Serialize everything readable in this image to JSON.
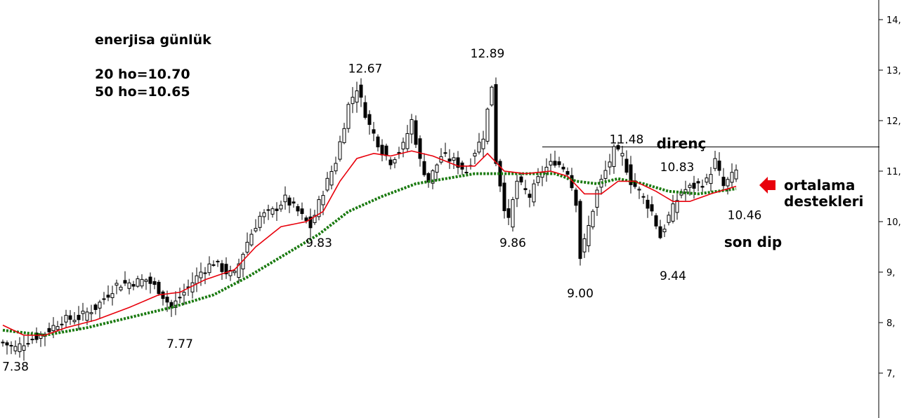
{
  "chart_data": {
    "type": "candlestick",
    "title": "enerjisa günlük",
    "ma_info": [
      "20 ho=10.70",
      "50 ho=10.65"
    ],
    "y_axis": {
      "position": "right",
      "ylim": [
        6.25,
        14.25
      ],
      "ticks": [
        {
          "value": 7,
          "label": "7,"
        },
        {
          "value": 8,
          "label": "8,"
        },
        {
          "value": 9,
          "label": "9,"
        },
        {
          "value": 10,
          "label": "10,"
        },
        {
          "value": 11,
          "label": "11,"
        },
        {
          "value": 12,
          "label": "12,"
        },
        {
          "value": 13,
          "label": "13,"
        },
        {
          "value": 14,
          "label": "14,"
        }
      ]
    },
    "candle_count": 175,
    "anchors": [
      {
        "i": 0,
        "c": 7.6
      },
      {
        "i": 3,
        "c": 7.5
      },
      {
        "i": 6,
        "c": 7.65
      },
      {
        "i": 10,
        "c": 7.8
      },
      {
        "i": 14,
        "c": 8.05
      },
      {
        "i": 18,
        "c": 8.1
      },
      {
        "i": 22,
        "c": 8.3
      },
      {
        "i": 27,
        "c": 8.75
      },
      {
        "i": 31,
        "c": 8.8
      },
      {
        "i": 34,
        "c": 8.85
      },
      {
        "i": 37,
        "c": 8.65
      },
      {
        "i": 40,
        "c": 8.3
      },
      {
        "i": 43,
        "c": 8.6
      },
      {
        "i": 47,
        "c": 9.0
      },
      {
        "i": 50,
        "c": 9.2
      },
      {
        "i": 53,
        "c": 9.0
      },
      {
        "i": 55,
        "c": 8.95
      },
      {
        "i": 58,
        "c": 9.6
      },
      {
        "i": 61,
        "c": 10.1
      },
      {
        "i": 64,
        "c": 10.2
      },
      {
        "i": 67,
        "c": 10.45
      },
      {
        "i": 70,
        "c": 10.2
      },
      {
        "i": 73,
        "c": 9.9
      },
      {
        "i": 76,
        "c": 10.6
      },
      {
        "i": 79,
        "c": 11.2
      },
      {
        "i": 82,
        "c": 12.3
      },
      {
        "i": 84,
        "c": 12.65
      },
      {
        "i": 87,
        "c": 11.9
      },
      {
        "i": 90,
        "c": 11.4
      },
      {
        "i": 92,
        "c": 11.2
      },
      {
        "i": 95,
        "c": 11.5
      },
      {
        "i": 97,
        "c": 12.0
      },
      {
        "i": 99,
        "c": 11.2
      },
      {
        "i": 101,
        "c": 10.8
      },
      {
        "i": 104,
        "c": 11.3
      },
      {
        "i": 107,
        "c": 11.2
      },
      {
        "i": 110,
        "c": 11.0
      },
      {
        "i": 112,
        "c": 11.4
      },
      {
        "i": 114,
        "c": 11.7
      },
      {
        "i": 116,
        "c": 12.7
      },
      {
        "i": 117,
        "c": 11.2
      },
      {
        "i": 119,
        "c": 10.3
      },
      {
        "i": 120,
        "c": 10.0
      },
      {
        "i": 122,
        "c": 10.8
      },
      {
        "i": 125,
        "c": 10.5
      },
      {
        "i": 128,
        "c": 11.0
      },
      {
        "i": 131,
        "c": 11.2
      },
      {
        "i": 134,
        "c": 11.0
      },
      {
        "i": 136,
        "c": 10.4
      },
      {
        "i": 137,
        "c": 9.3
      },
      {
        "i": 139,
        "c": 9.9
      },
      {
        "i": 141,
        "c": 10.6
      },
      {
        "i": 143,
        "c": 11.0
      },
      {
        "i": 145,
        "c": 11.4
      },
      {
        "i": 147,
        "c": 11.3
      },
      {
        "i": 149,
        "c": 10.8
      },
      {
        "i": 151,
        "c": 10.6
      },
      {
        "i": 154,
        "c": 10.2
      },
      {
        "i": 156,
        "c": 9.7
      },
      {
        "i": 158,
        "c": 10.1
      },
      {
        "i": 161,
        "c": 10.6
      },
      {
        "i": 164,
        "c": 10.7
      },
      {
        "i": 167,
        "c": 10.8
      },
      {
        "i": 169,
        "c": 11.2
      },
      {
        "i": 171,
        "c": 10.7
      },
      {
        "i": 174,
        "c": 11.0
      }
    ],
    "ma20": [
      {
        "i": 0,
        "v": 7.95
      },
      {
        "i": 5,
        "v": 7.75
      },
      {
        "i": 10,
        "v": 7.75
      },
      {
        "i": 15,
        "v": 7.9
      },
      {
        "i": 22,
        "v": 8.05
      },
      {
        "i": 30,
        "v": 8.3
      },
      {
        "i": 37,
        "v": 8.55
      },
      {
        "i": 42,
        "v": 8.6
      },
      {
        "i": 48,
        "v": 8.85
      },
      {
        "i": 55,
        "v": 9.05
      },
      {
        "i": 60,
        "v": 9.5
      },
      {
        "i": 66,
        "v": 9.9
      },
      {
        "i": 72,
        "v": 10.0
      },
      {
        "i": 76,
        "v": 10.2
      },
      {
        "i": 80,
        "v": 10.8
      },
      {
        "i": 84,
        "v": 11.25
      },
      {
        "i": 88,
        "v": 11.35
      },
      {
        "i": 92,
        "v": 11.3
      },
      {
        "i": 97,
        "v": 11.4
      },
      {
        "i": 102,
        "v": 11.3
      },
      {
        "i": 108,
        "v": 11.1
      },
      {
        "i": 112,
        "v": 11.1
      },
      {
        "i": 115,
        "v": 11.35
      },
      {
        "i": 119,
        "v": 11.0
      },
      {
        "i": 124,
        "v": 10.95
      },
      {
        "i": 130,
        "v": 11.0
      },
      {
        "i": 134,
        "v": 10.9
      },
      {
        "i": 138,
        "v": 10.55
      },
      {
        "i": 142,
        "v": 10.55
      },
      {
        "i": 146,
        "v": 10.8
      },
      {
        "i": 150,
        "v": 10.8
      },
      {
        "i": 155,
        "v": 10.6
      },
      {
        "i": 159,
        "v": 10.4
      },
      {
        "i": 163,
        "v": 10.4
      },
      {
        "i": 168,
        "v": 10.55
      },
      {
        "i": 174,
        "v": 10.7
      }
    ],
    "ma50": [
      {
        "i": 0,
        "v": 7.85
      },
      {
        "i": 10,
        "v": 7.75
      },
      {
        "i": 20,
        "v": 7.9
      },
      {
        "i": 30,
        "v": 8.1
      },
      {
        "i": 40,
        "v": 8.3
      },
      {
        "i": 50,
        "v": 8.55
      },
      {
        "i": 58,
        "v": 8.9
      },
      {
        "i": 66,
        "v": 9.3
      },
      {
        "i": 75,
        "v": 9.75
      },
      {
        "i": 82,
        "v": 10.2
      },
      {
        "i": 90,
        "v": 10.5
      },
      {
        "i": 98,
        "v": 10.75
      },
      {
        "i": 105,
        "v": 10.85
      },
      {
        "i": 112,
        "v": 10.95
      },
      {
        "i": 118,
        "v": 10.95
      },
      {
        "i": 125,
        "v": 10.95
      },
      {
        "i": 131,
        "v": 10.95
      },
      {
        "i": 136,
        "v": 10.8
      },
      {
        "i": 141,
        "v": 10.75
      },
      {
        "i": 146,
        "v": 10.85
      },
      {
        "i": 152,
        "v": 10.75
      },
      {
        "i": 158,
        "v": 10.6
      },
      {
        "i": 165,
        "v": 10.55
      },
      {
        "i": 174,
        "v": 10.65
      }
    ],
    "resistance": {
      "value": 11.48,
      "from_i": 128,
      "to_i": 208
    },
    "annotations": [
      {
        "text": "7.38",
        "bold": false,
        "i": 3,
        "y": 7.05
      },
      {
        "text": "7.77",
        "bold": false,
        "i": 42,
        "y": 7.5
      },
      {
        "text": "9.83",
        "bold": false,
        "i": 75,
        "y": 9.5
      },
      {
        "text": "12.67",
        "bold": false,
        "i": 86,
        "y": 12.95
      },
      {
        "text": "12.89",
        "bold": false,
        "i": 115,
        "y": 13.25
      },
      {
        "text": "9.86",
        "bold": false,
        "i": 121,
        "y": 9.5
      },
      {
        "text": "9.00",
        "bold": false,
        "i": 137,
        "y": 8.5
      },
      {
        "text": "11.48",
        "bold": false,
        "i": 148,
        "y": 11.55
      },
      {
        "text": "direnç",
        "bold": true,
        "i": 161,
        "y": 11.45
      },
      {
        "text": "10.83",
        "bold": false,
        "i": 160,
        "y": 11.0
      },
      {
        "text": "9.44",
        "bold": false,
        "i": 159,
        "y": 8.85
      },
      {
        "text": "10.46",
        "bold": false,
        "i": 176,
        "y": 10.05
      },
      {
        "text": "son dip",
        "bold": true,
        "i": 178,
        "y": 9.5
      }
    ],
    "arrow_label": [
      "ortalama",
      "destekleri"
    ],
    "colors": {
      "ma20": "#e8000b",
      "ma50": "#1a7a10",
      "arrow": "#e8000b",
      "candle": "#000000"
    }
  }
}
